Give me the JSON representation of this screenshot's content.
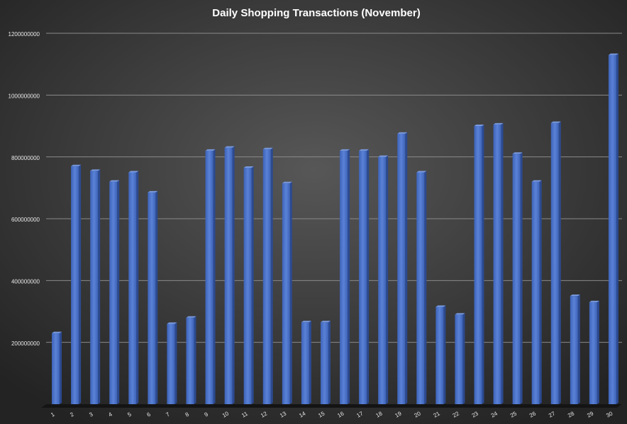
{
  "chart_data": {
    "type": "bar",
    "title": "Daily Shopping Transactions (November)",
    "categories": [
      "1",
      "2",
      "3",
      "4",
      "5",
      "6",
      "7",
      "8",
      "9",
      "10",
      "11",
      "12",
      "13",
      "14",
      "15",
      "16",
      "17",
      "18",
      "19",
      "20",
      "21",
      "22",
      "23",
      "24",
      "25",
      "26",
      "27",
      "28",
      "29",
      "30"
    ],
    "values": [
      230000000,
      770000000,
      755000000,
      720000000,
      750000000,
      685000000,
      260000000,
      280000000,
      820000000,
      830000000,
      765000000,
      825000000,
      715000000,
      265000000,
      265000000,
      820000000,
      820000000,
      800000000,
      875000000,
      750000000,
      315000000,
      290000000,
      900000000,
      905000000,
      810000000,
      720000000,
      910000000,
      350000000,
      330000000,
      1130000000
    ],
    "color": "#4472c4",
    "ylim": [
      0,
      1200000000
    ],
    "yticks": [
      200000000,
      400000000,
      600000000,
      800000000,
      1000000000,
      1200000000
    ],
    "grid": true
  }
}
